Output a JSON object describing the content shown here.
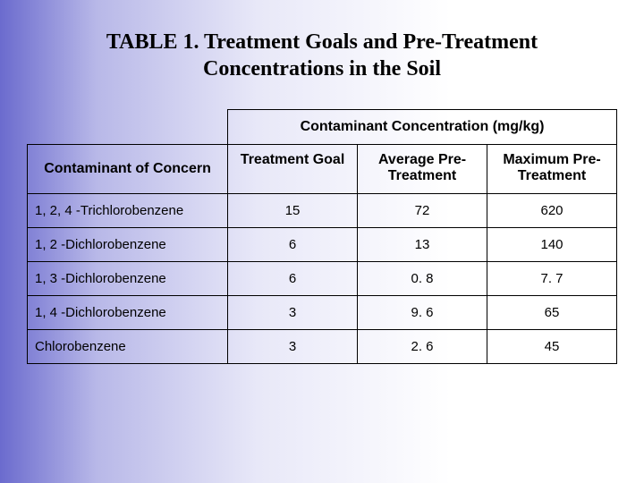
{
  "title_fontsize": 24,
  "header_fontsize": 16,
  "body_fontsize": 15,
  "title": "TABLE 1. Treatment Goals and Pre-Treatment Concentrations in the Soil",
  "table": {
    "group_header": "Contaminant Concentration (mg/kg)",
    "row_header": "Contaminant of Concern",
    "columns": [
      "Treatment Goal",
      "Average Pre-Treatment",
      "Maximum Pre-Treatment"
    ],
    "rows": [
      {
        "name": "1, 2, 4 -Trichlorobenzene",
        "goal": "15",
        "avg": "72",
        "max": "620"
      },
      {
        "name": "1, 2 -Dichlorobenzene",
        "goal": "6",
        "avg": "13",
        "max": "140"
      },
      {
        "name": "1, 3 -Dichlorobenzene",
        "goal": "6",
        "avg": "0. 8",
        "max": "7. 7"
      },
      {
        "name": "1, 4 -Dichlorobenzene",
        "goal": "3",
        "avg": "9. 6",
        "max": "65"
      },
      {
        "name": "Chlorobenzene",
        "goal": "3",
        "avg": "2. 6",
        "max": "45"
      }
    ]
  }
}
